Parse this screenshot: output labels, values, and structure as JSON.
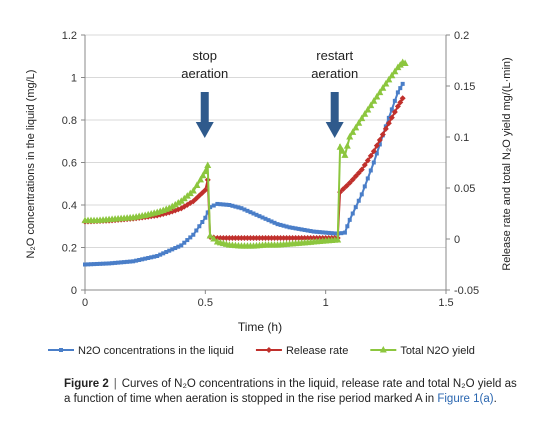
{
  "chart_data": {
    "type": "line",
    "xlabel": "Time (h)",
    "ylabel_left": "N₂O concentrations in the liquid (mg/L)",
    "ylabel_right": "Release rate and total N₂O yield mg/(L·min)",
    "xlim": [
      0,
      1.5
    ],
    "ylim_left": [
      0,
      1.2
    ],
    "ylim_right": [
      -0.05,
      0.2
    ],
    "x_ticks": [
      "0",
      "0.5",
      "1",
      "1.5"
    ],
    "y_ticks_left": [
      "0",
      "0.2",
      "0.4",
      "0.6",
      "0.8",
      "1",
      "1.2"
    ],
    "y_ticks_right": [
      "-0.05",
      "0",
      "0.05",
      "0.1",
      "0.15",
      "0.2"
    ],
    "grid": "horizontal",
    "legend_position": "bottom",
    "annotations": [
      {
        "text_lines": [
          "stop",
          "aeration"
        ],
        "x": 0.51
      },
      {
        "text_lines": [
          "restart",
          "aeration"
        ],
        "x": 1.05
      }
    ],
    "series": [
      {
        "name": "N2O concentrations in the liquid",
        "axis": "left",
        "color": "#4a7ec8",
        "marker": "square",
        "points": [
          [
            0,
            0.12
          ],
          [
            0.1,
            0.125
          ],
          [
            0.2,
            0.135
          ],
          [
            0.3,
            0.16
          ],
          [
            0.4,
            0.21
          ],
          [
            0.45,
            0.26
          ],
          [
            0.5,
            0.34
          ],
          [
            0.52,
            0.39
          ],
          [
            0.55,
            0.405
          ],
          [
            0.6,
            0.4
          ],
          [
            0.65,
            0.385
          ],
          [
            0.7,
            0.36
          ],
          [
            0.75,
            0.335
          ],
          [
            0.8,
            0.31
          ],
          [
            0.85,
            0.295
          ],
          [
            0.9,
            0.285
          ],
          [
            0.95,
            0.275
          ],
          [
            1.0,
            0.27
          ],
          [
            1.05,
            0.265
          ],
          [
            1.08,
            0.27
          ],
          [
            1.1,
            0.33
          ],
          [
            1.15,
            0.45
          ],
          [
            1.2,
            0.6
          ],
          [
            1.25,
            0.77
          ],
          [
            1.3,
            0.93
          ],
          [
            1.32,
            0.97
          ]
        ]
      },
      {
        "name": "Release rate",
        "axis": "right",
        "color": "#c0302c",
        "marker": "diamond",
        "points": [
          [
            0,
            0.017
          ],
          [
            0.1,
            0.018
          ],
          [
            0.2,
            0.02
          ],
          [
            0.3,
            0.023
          ],
          [
            0.35,
            0.026
          ],
          [
            0.4,
            0.03
          ],
          [
            0.45,
            0.037
          ],
          [
            0.5,
            0.048
          ],
          [
            0.51,
            0.058
          ],
          [
            0.52,
            0.002
          ],
          [
            0.55,
            0.001
          ],
          [
            0.6,
            0.001
          ],
          [
            0.7,
            0.001
          ],
          [
            0.8,
            0.001
          ],
          [
            0.9,
            0.001
          ],
          [
            1.0,
            0.001
          ],
          [
            1.05,
            0.001
          ],
          [
            1.06,
            0.046
          ],
          [
            1.1,
            0.055
          ],
          [
            1.15,
            0.068
          ],
          [
            1.2,
            0.086
          ],
          [
            1.25,
            0.108
          ],
          [
            1.3,
            0.13
          ],
          [
            1.32,
            0.138
          ]
        ]
      },
      {
        "name": "Total N2O yield",
        "axis": "right",
        "color": "#8cc63e",
        "marker": "triangle",
        "points": [
          [
            0,
            0.018
          ],
          [
            0.05,
            0.018
          ],
          [
            0.1,
            0.019
          ],
          [
            0.15,
            0.02
          ],
          [
            0.2,
            0.021
          ],
          [
            0.25,
            0.023
          ],
          [
            0.3,
            0.026
          ],
          [
            0.35,
            0.03
          ],
          [
            0.4,
            0.037
          ],
          [
            0.45,
            0.047
          ],
          [
            0.48,
            0.058
          ],
          [
            0.5,
            0.066
          ],
          [
            0.51,
            0.072
          ],
          [
            0.52,
            0.003
          ],
          [
            0.55,
            -0.003
          ],
          [
            0.6,
            -0.006
          ],
          [
            0.65,
            -0.007
          ],
          [
            0.7,
            -0.007
          ],
          [
            0.75,
            -0.006
          ],
          [
            0.8,
            -0.006
          ],
          [
            0.85,
            -0.005
          ],
          [
            0.9,
            -0.004
          ],
          [
            0.95,
            -0.003
          ],
          [
            1.0,
            -0.002
          ],
          [
            1.05,
            -0.001
          ],
          [
            1.06,
            0.09
          ],
          [
            1.08,
            0.082
          ],
          [
            1.1,
            0.1
          ],
          [
            1.15,
            0.118
          ],
          [
            1.2,
            0.135
          ],
          [
            1.25,
            0.152
          ],
          [
            1.3,
            0.168
          ],
          [
            1.32,
            0.173
          ],
          [
            1.33,
            0.172
          ]
        ]
      }
    ]
  },
  "caption": {
    "label": "Figure 2",
    "separator": "|",
    "text": "Curves of N₂O concentrations in the liquid, release rate and total N₂O yield as a function of time when aeration is stopped in the rise period marked A in",
    "link": "Figure 1(a)",
    "end": "."
  }
}
